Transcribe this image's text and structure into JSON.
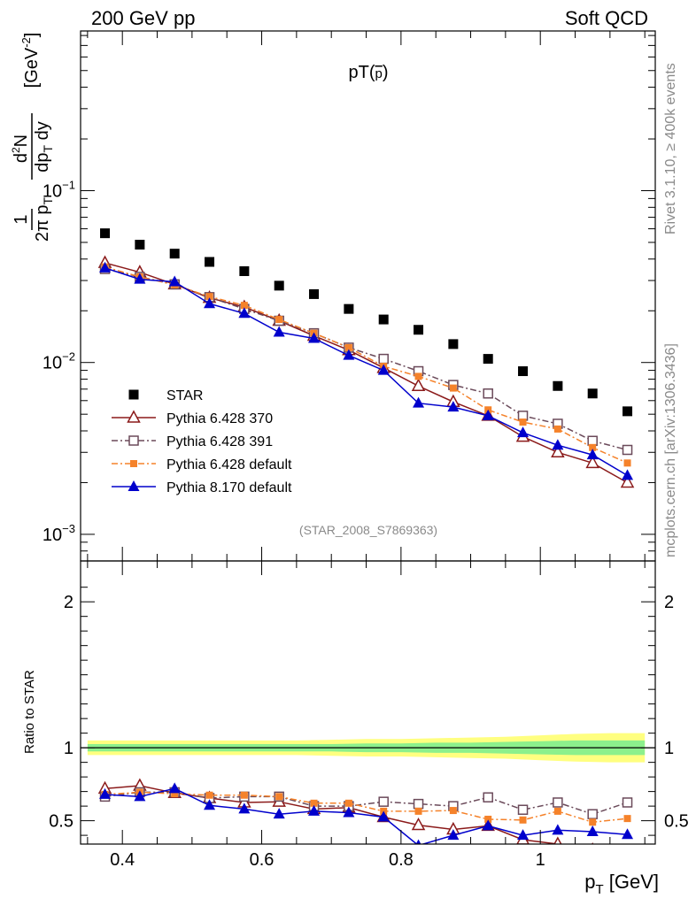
{
  "header": {
    "left": "200 GeV pp",
    "right": "Soft QCD"
  },
  "side_labels": {
    "rivet": "Rivet 3.1.10, ≥ 400k events",
    "mcplots": "mcplots.cern.ch [arXiv:1306.3436]"
  },
  "chart_data": [
    {
      "type": "scatter",
      "title": "pT(p̄)",
      "title_base": "pT(",
      "title_particle": "p",
      "title_close": ")",
      "analysis_tag": "(STAR_2008_S7869363)",
      "ylabel": "1/(2π pT) d²N/(dpT dy) [GeV⁻²]",
      "y_scale": "log",
      "xlim": [
        0.34,
        1.165
      ],
      "ylim": [
        0.0007,
        0.85
      ],
      "y_tick_labels": [
        "10−3",
        "10−2",
        "10−1"
      ],
      "legend_position": "lower-left",
      "x": [
        0.375,
        0.425,
        0.475,
        0.525,
        0.575,
        0.625,
        0.675,
        0.725,
        0.775,
        0.825,
        0.875,
        0.925,
        0.975,
        1.025,
        1.075,
        1.125
      ],
      "series": [
        {
          "name": "STAR",
          "color": "#000000",
          "marker": "square-filled",
          "line": "none",
          "values": [
            0.0565,
            0.0485,
            0.043,
            0.0385,
            0.034,
            0.028,
            0.025,
            0.0205,
            0.0178,
            0.0155,
            0.0128,
            0.0105,
            0.0089,
            0.0073,
            0.0066,
            0.0052
          ]
        },
        {
          "name": "Pythia 6.428 370",
          "color": "#8b1a1a",
          "marker": "triangle-open",
          "line": "solid",
          "values": [
            0.038,
            0.0335,
            0.0285,
            0.0238,
            0.021,
            0.0175,
            0.0143,
            0.0118,
            0.0093,
            0.0073,
            0.0059,
            0.0049,
            0.0037,
            0.003,
            0.0026,
            0.002
          ]
        },
        {
          "name": "Pythia 6.428 391",
          "color": "#6b4a5a",
          "marker": "square-open",
          "line": "dashdot",
          "values": [
            0.035,
            0.0315,
            0.0285,
            0.024,
            0.0205,
            0.0175,
            0.0148,
            0.0122,
            0.0105,
            0.0089,
            0.0074,
            0.0066,
            0.0049,
            0.0044,
            0.0035,
            0.0031
          ]
        },
        {
          "name": "Pythia 6.428 default",
          "color": "#f5822a",
          "marker": "square-filled-small",
          "line": "dashdot",
          "values": [
            0.036,
            0.0315,
            0.0283,
            0.0242,
            0.0215,
            0.0178,
            0.0148,
            0.0122,
            0.0095,
            0.0083,
            0.0071,
            0.0053,
            0.0045,
            0.0041,
            0.0032,
            0.0026
          ]
        },
        {
          "name": "Pythia 8.170 default",
          "color": "#0000cc",
          "marker": "triangle-filled",
          "line": "solid",
          "values": [
            0.0355,
            0.0305,
            0.0295,
            0.022,
            0.0193,
            0.015,
            0.0138,
            0.011,
            0.009,
            0.0058,
            0.0055,
            0.0049,
            0.0039,
            0.0033,
            0.0029,
            0.0022
          ]
        }
      ]
    },
    {
      "type": "line",
      "title": "",
      "xlabel": "p_T [GeV]",
      "xlabel_base": "p",
      "xlabel_sub": "T",
      "xlabel_unit": "[GeV]",
      "ylabel": "Ratio to STAR",
      "xlim": [
        0.34,
        1.165
      ],
      "ylim": [
        0.34,
        2.28
      ],
      "x_ticks": [
        0.4,
        0.6,
        0.8,
        1.0
      ],
      "x_tick_labels": [
        "0.4",
        "0.6",
        "0.8",
        "1"
      ],
      "y_ticks": [
        0.5,
        1,
        2
      ],
      "y_tick_labels": [
        "0.5",
        "1",
        "2"
      ],
      "band": {
        "x": [
          0.35,
          0.4,
          0.45,
          0.5,
          0.55,
          0.6,
          0.65,
          0.7,
          0.75,
          0.8,
          0.85,
          0.9,
          0.95,
          1.0,
          1.05,
          1.1,
          1.15
        ],
        "yellow_half_width": [
          0.05,
          0.05,
          0.05,
          0.05,
          0.05,
          0.05,
          0.05,
          0.055,
          0.06,
          0.06,
          0.065,
          0.07,
          0.075,
          0.085,
          0.095,
          0.1,
          0.1
        ],
        "green_half_width": [
          0.025,
          0.025,
          0.025,
          0.025,
          0.025,
          0.025,
          0.025,
          0.025,
          0.03,
          0.03,
          0.035,
          0.035,
          0.04,
          0.045,
          0.05,
          0.05,
          0.05
        ]
      },
      "x": [
        0.375,
        0.425,
        0.475,
        0.525,
        0.575,
        0.625,
        0.675,
        0.725,
        0.775,
        0.825,
        0.875,
        0.925,
        0.975,
        1.025,
        1.075,
        1.125
      ],
      "series": [
        {
          "name": "Pythia 6.428 370",
          "color": "#8b1a1a",
          "marker": "triangle-open",
          "line": "solid",
          "values": [
            0.72,
            0.74,
            0.69,
            0.655,
            0.625,
            0.63,
            0.58,
            0.59,
            0.525,
            0.47,
            0.44,
            0.465,
            0.37,
            0.34,
            0.3,
            0.27
          ]
        },
        {
          "name": "Pythia 6.428 391",
          "color": "#6b4a5a",
          "marker": "square-open",
          "line": "dashdot",
          "values": [
            0.665,
            0.695,
            0.695,
            0.655,
            0.665,
            0.665,
            0.6,
            0.6,
            0.63,
            0.615,
            0.6,
            0.66,
            0.575,
            0.625,
            0.545,
            0.625
          ]
        },
        {
          "name": "Pythia 6.428 default",
          "color": "#f5822a",
          "marker": "square-filled-small",
          "line": "dashdot",
          "values": [
            0.68,
            0.695,
            0.685,
            0.675,
            0.675,
            0.665,
            0.62,
            0.62,
            0.565,
            0.565,
            0.57,
            0.51,
            0.505,
            0.565,
            0.49,
            0.515
          ]
        },
        {
          "name": "Pythia 8.170 default",
          "color": "#0000cc",
          "marker": "triangle-filled",
          "line": "solid",
          "values": [
            0.68,
            0.665,
            0.72,
            0.605,
            0.58,
            0.545,
            0.565,
            0.555,
            0.525,
            0.33,
            0.4,
            0.465,
            0.4,
            0.435,
            0.425,
            0.405
          ]
        }
      ]
    }
  ]
}
